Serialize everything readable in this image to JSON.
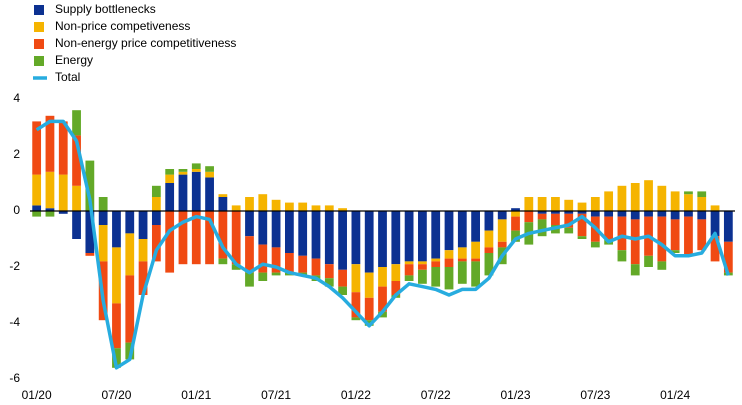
{
  "chart_data": {
    "type": "bar",
    "categories": [
      "01/20",
      null,
      null,
      null,
      null,
      null,
      "07/20",
      null,
      null,
      null,
      null,
      null,
      "01/21",
      null,
      null,
      null,
      null,
      null,
      "07/21",
      null,
      null,
      null,
      null,
      null,
      "01/22",
      null,
      null,
      null,
      null,
      null,
      "07/22",
      null,
      null,
      null,
      null,
      null,
      "01/23",
      null,
      null,
      null,
      null,
      null,
      "07/23",
      null,
      null,
      null,
      null,
      null,
      "01/24",
      null,
      null,
      null,
      null
    ],
    "series": [
      {
        "name": "Supply bottlenecks",
        "color": "#0c3191",
        "values": [
          0.2,
          0.1,
          -0.1,
          -1.0,
          -1.5,
          -0.5,
          -1.3,
          -0.8,
          -1.0,
          -0.5,
          1.0,
          1.3,
          1.4,
          1.2,
          0.5,
          0.0,
          -0.9,
          -1.2,
          -1.3,
          -1.5,
          -1.6,
          -1.7,
          -1.9,
          -2.1,
          -1.9,
          -2.2,
          -2.0,
          -1.9,
          -1.8,
          -1.8,
          -1.7,
          -1.4,
          -1.3,
          -1.1,
          -0.7,
          -0.3,
          0.1,
          0.0,
          -0.1,
          -0.1,
          -0.1,
          -0.1,
          -0.2,
          -0.2,
          -0.2,
          -0.3,
          -0.2,
          -0.2,
          -0.3,
          -0.2,
          -0.3,
          -0.9,
          -1.1
        ]
      },
      {
        "name": "Non-price competiveness",
        "color": "#f5b400",
        "values": [
          1.1,
          1.3,
          1.3,
          0.9,
          0.0,
          -1.3,
          -2.0,
          -1.5,
          -0.8,
          0.5,
          0.3,
          0.1,
          0.1,
          0.2,
          0.1,
          0.2,
          0.5,
          0.6,
          0.4,
          0.3,
          0.3,
          0.2,
          0.2,
          0.1,
          -1.0,
          -0.9,
          -0.7,
          -0.6,
          -0.1,
          -0.1,
          -0.1,
          -0.3,
          -0.4,
          -0.6,
          -0.6,
          -0.8,
          -0.2,
          0.5,
          0.5,
          0.5,
          0.4,
          0.3,
          0.5,
          0.7,
          0.9,
          1.0,
          1.1,
          0.9,
          0.7,
          0.6,
          0.5,
          0.2,
          0.0
        ]
      },
      {
        "name": "Non-energy price competitiveness",
        "color": "#f04a13",
        "values": [
          1.9,
          2.0,
          1.9,
          1.8,
          -0.1,
          -2.1,
          -1.6,
          -2.4,
          -1.2,
          -1.3,
          -2.2,
          -1.9,
          -1.9,
          -1.9,
          -1.7,
          -1.9,
          -1.3,
          -1.0,
          -0.9,
          -0.7,
          -0.6,
          -0.6,
          -0.5,
          -0.6,
          -0.9,
          -0.8,
          -0.9,
          -0.5,
          -0.4,
          -0.2,
          -0.2,
          -0.3,
          -0.1,
          -0.1,
          -0.2,
          -0.2,
          -0.5,
          -0.4,
          -0.2,
          -0.4,
          -0.5,
          -0.8,
          -0.9,
          -0.8,
          -1.2,
          -1.6,
          -1.4,
          -1.6,
          -1.1,
          -1.4,
          -1.1,
          -0.9,
          -1.1
        ]
      },
      {
        "name": "Energy",
        "color": "#63a928",
        "values": [
          -0.2,
          -0.2,
          0.0,
          0.9,
          1.8,
          0.5,
          -0.7,
          -0.6,
          0.0,
          0.4,
          0.2,
          0.1,
          0.2,
          0.2,
          -0.2,
          -0.2,
          -0.5,
          -0.3,
          -0.1,
          -0.1,
          -0.1,
          -0.2,
          -0.3,
          -0.3,
          -0.1,
          -0.2,
          -0.2,
          -0.1,
          -0.2,
          -0.5,
          -0.7,
          -0.8,
          -0.8,
          -0.9,
          -0.8,
          -0.6,
          -0.4,
          -0.8,
          -0.6,
          -0.3,
          -0.2,
          -0.1,
          -0.2,
          -0.2,
          -0.4,
          -0.4,
          -0.4,
          -0.3,
          -0.1,
          0.1,
          0.2,
          0.0,
          -0.1
        ]
      },
      {
        "name": "Total",
        "color": "#27acdf",
        "line": true,
        "values": [
          2.9,
          3.2,
          3.2,
          2.5,
          0.4,
          -3.2,
          -5.6,
          -5.3,
          -3.0,
          -1.4,
          -0.7,
          -0.4,
          -0.2,
          -0.3,
          -1.3,
          -1.9,
          -2.2,
          -1.9,
          -2.0,
          -2.2,
          -2.3,
          -2.4,
          -2.7,
          -3.1,
          -3.6,
          -4.1,
          -3.6,
          -3.0,
          -2.6,
          -2.7,
          -2.8,
          -3.0,
          -2.8,
          -2.8,
          -2.4,
          -1.6,
          -1.0,
          -0.8,
          -0.7,
          -0.6,
          -0.5,
          -0.2,
          -0.6,
          -1.1,
          -0.9,
          -1.0,
          -0.9,
          -1.2,
          -1.6,
          -1.6,
          -1.5,
          -0.8,
          -2.3
        ]
      }
    ],
    "ylim": [
      -6,
      4
    ],
    "yticks": [
      -6,
      -4,
      -2,
      0,
      2,
      4
    ]
  }
}
